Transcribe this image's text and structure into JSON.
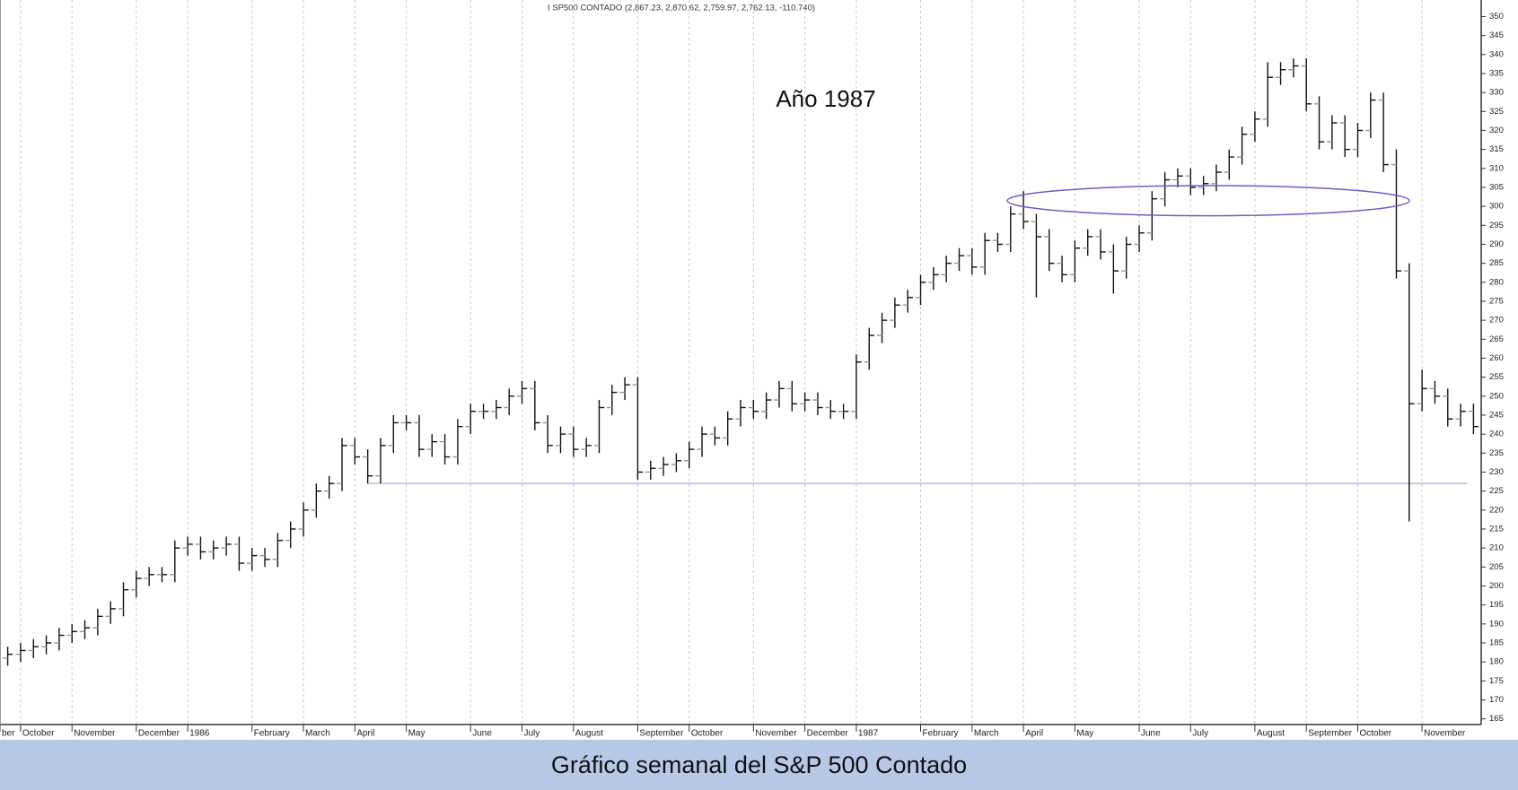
{
  "chart_data": {
    "type": "ohlc",
    "title": "I SP500 CONTADO (2,867.23, 2,870.62, 2,759.97, 2,762.13, -110.740)",
    "annotation": "Año 1987",
    "caption": "Gráfico semanal del S&P 500 Contado",
    "color": "#111111",
    "open_color": "#999999",
    "support": 227,
    "support_color": "#a9c3de",
    "resistance": [
      298,
      305
    ],
    "resistance_color": "#6a5fc8",
    "xlim": [
      -0.6,
      114.6
    ],
    "ylim": [
      163.5,
      352
    ],
    "grid": true,
    "xticks": [
      {
        "value": -0.6,
        "label": "ber"
      },
      {
        "value": 1,
        "label": "October"
      },
      {
        "value": 5,
        "label": "November"
      },
      {
        "value": 10,
        "label": "December"
      },
      {
        "value": 14,
        "label": "1986"
      },
      {
        "value": 19,
        "label": "February"
      },
      {
        "value": 23,
        "label": "March"
      },
      {
        "value": 27,
        "label": "April"
      },
      {
        "value": 31,
        "label": "May"
      },
      {
        "value": 36,
        "label": "June"
      },
      {
        "value": 40,
        "label": "July"
      },
      {
        "value": 44,
        "label": "August"
      },
      {
        "value": 49,
        "label": "September"
      },
      {
        "value": 53,
        "label": "October"
      },
      {
        "value": 58,
        "label": "November"
      },
      {
        "value": 62,
        "label": "December"
      },
      {
        "value": 66,
        "label": "1987"
      },
      {
        "value": 71,
        "label": "February"
      },
      {
        "value": 75,
        "label": "March"
      },
      {
        "value": 79,
        "label": "April"
      },
      {
        "value": 83,
        "label": "May"
      },
      {
        "value": 88,
        "label": "June"
      },
      {
        "value": 92,
        "label": "July"
      },
      {
        "value": 97,
        "label": "August"
      },
      {
        "value": 101,
        "label": "September"
      },
      {
        "value": 105,
        "label": "October"
      },
      {
        "value": 110,
        "label": "November"
      }
    ],
    "yticks": [
      165,
      170,
      175,
      180,
      185,
      190,
      195,
      200,
      205,
      210,
      215,
      220,
      225,
      230,
      235,
      240,
      245,
      250,
      255,
      260,
      265,
      270,
      275,
      280,
      285,
      290,
      295,
      300,
      305,
      310,
      315,
      320,
      325,
      330,
      335,
      340,
      345,
      350
    ],
    "open": [
      181,
      182,
      183,
      184,
      185,
      187,
      188,
      189,
      192,
      194,
      199,
      202,
      203,
      203,
      210,
      211,
      209,
      210,
      211,
      206,
      208,
      207,
      212,
      215,
      220,
      225,
      227,
      237,
      234,
      229,
      237,
      243,
      243,
      236,
      238,
      234,
      242,
      246,
      246,
      247,
      250,
      252,
      243,
      237,
      240,
      236,
      237,
      247,
      251,
      253,
      230,
      231,
      232,
      233,
      236,
      240,
      239,
      244,
      247,
      246,
      249,
      252,
      248,
      249,
      247,
      246,
      246,
      259,
      266,
      270,
      274,
      276,
      280,
      282,
      285,
      287,
      284,
      291,
      290,
      298,
      296,
      292,
      285,
      282,
      289,
      292,
      288,
      283,
      290,
      293,
      302,
      307,
      308,
      305,
      306,
      309,
      313,
      319,
      323,
      334,
      336,
      337,
      327,
      317,
      322,
      315,
      320,
      328,
      311,
      283,
      248,
      252,
      250,
      244,
      246
    ],
    "high": [
      184,
      185,
      186,
      187,
      189,
      190,
      191,
      194,
      196,
      201,
      204,
      205,
      205,
      212,
      213,
      213,
      212,
      213,
      213,
      210,
      210,
      214,
      217,
      222,
      227,
      229,
      239,
      239,
      236,
      239,
      245,
      245,
      245,
      240,
      240,
      244,
      248,
      248,
      249,
      252,
      254,
      254,
      245,
      242,
      242,
      239,
      249,
      253,
      255,
      255,
      233,
      234,
      235,
      238,
      242,
      242,
      246,
      249,
      249,
      251,
      254,
      254,
      251,
      251,
      249,
      248,
      261,
      268,
      272,
      276,
      278,
      282,
      284,
      287,
      289,
      289,
      293,
      293,
      300,
      304,
      298,
      294,
      287,
      291,
      294,
      294,
      290,
      292,
      295,
      304,
      309,
      310,
      310,
      308,
      311,
      315,
      321,
      325,
      338,
      338,
      339,
      339,
      329,
      324,
      324,
      322,
      330,
      330,
      315,
      285,
      257,
      254,
      252,
      248,
      248
    ],
    "low": [
      179,
      180,
      181,
      182,
      183,
      185,
      186,
      187,
      190,
      192,
      197,
      200,
      201,
      201,
      208,
      207,
      207,
      208,
      204,
      204,
      205,
      205,
      210,
      213,
      218,
      223,
      225,
      232,
      227,
      227,
      235,
      241,
      234,
      234,
      232,
      232,
      240,
      244,
      244,
      245,
      248,
      241,
      235,
      235,
      234,
      234,
      235,
      245,
      249,
      228,
      228,
      229,
      230,
      231,
      234,
      237,
      237,
      242,
      244,
      244,
      247,
      246,
      246,
      245,
      244,
      244,
      244,
      257,
      264,
      268,
      272,
      274,
      278,
      280,
      283,
      282,
      282,
      288,
      288,
      294,
      276,
      283,
      280,
      280,
      287,
      286,
      277,
      281,
      288,
      291,
      300,
      305,
      303,
      303,
      304,
      307,
      311,
      317,
      321,
      332,
      334,
      325,
      315,
      315,
      313,
      313,
      318,
      309,
      281,
      217,
      246,
      248,
      242,
      242,
      240
    ],
    "close": [
      182,
      183,
      184,
      185,
      187,
      188,
      189,
      192,
      194,
      199,
      202,
      203,
      203,
      210,
      211,
      209,
      210,
      211,
      206,
      208,
      207,
      212,
      215,
      220,
      225,
      227,
      237,
      234,
      229,
      237,
      243,
      243,
      236,
      238,
      234,
      242,
      246,
      246,
      247,
      250,
      252,
      243,
      237,
      240,
      236,
      237,
      247,
      251,
      253,
      230,
      231,
      232,
      233,
      236,
      240,
      239,
      244,
      247,
      246,
      249,
      252,
      248,
      249,
      247,
      246,
      246,
      259,
      266,
      270,
      274,
      276,
      280,
      282,
      285,
      287,
      284,
      291,
      290,
      298,
      296,
      292,
      285,
      282,
      289,
      292,
      288,
      283,
      290,
      293,
      302,
      307,
      308,
      305,
      306,
      309,
      313,
      319,
      323,
      334,
      336,
      337,
      327,
      317,
      322,
      315,
      320,
      328,
      311,
      283,
      248,
      252,
      250,
      244,
      246,
      242
    ]
  }
}
